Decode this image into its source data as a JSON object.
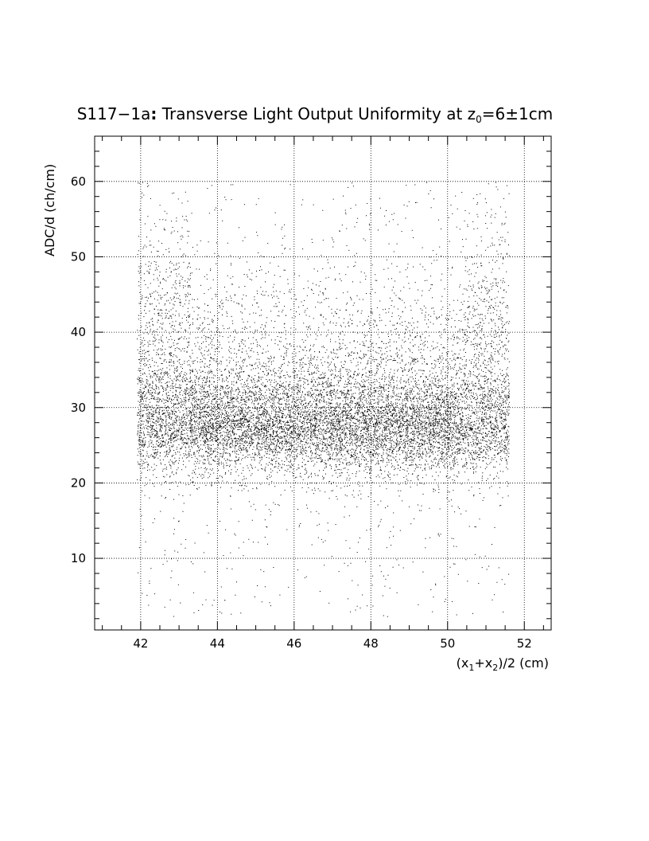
{
  "chart_data": {
    "type": "scatter",
    "title": {
      "prefix": "S117−1a",
      "colon": ":",
      "main": " Transverse Light Output Uniformity at z",
      "sub": "0",
      "suffix": "=6±1cm"
    },
    "ylabel": "ADC/d (ch/cm)",
    "xlabel": {
      "p1": "(x",
      "s1": "1",
      "p2": "+x",
      "s2": "2",
      "p3": ")/2 (cm)"
    },
    "xlim": [
      40.8,
      52.7
    ],
    "ylim": [
      0.5,
      66
    ],
    "x_ticks": [
      "42",
      "44",
      "46",
      "48",
      "50",
      "52"
    ],
    "y_ticks": [
      "10",
      "20",
      "30",
      "40",
      "50",
      "60"
    ],
    "grid": true,
    "points": {
      "count": 13000,
      "x_range": [
        41.9,
        51.6
      ],
      "core_y_mean": 27.5,
      "core_y_sd": 3.2,
      "tail_y_range": [
        2,
        60
      ]
    }
  }
}
